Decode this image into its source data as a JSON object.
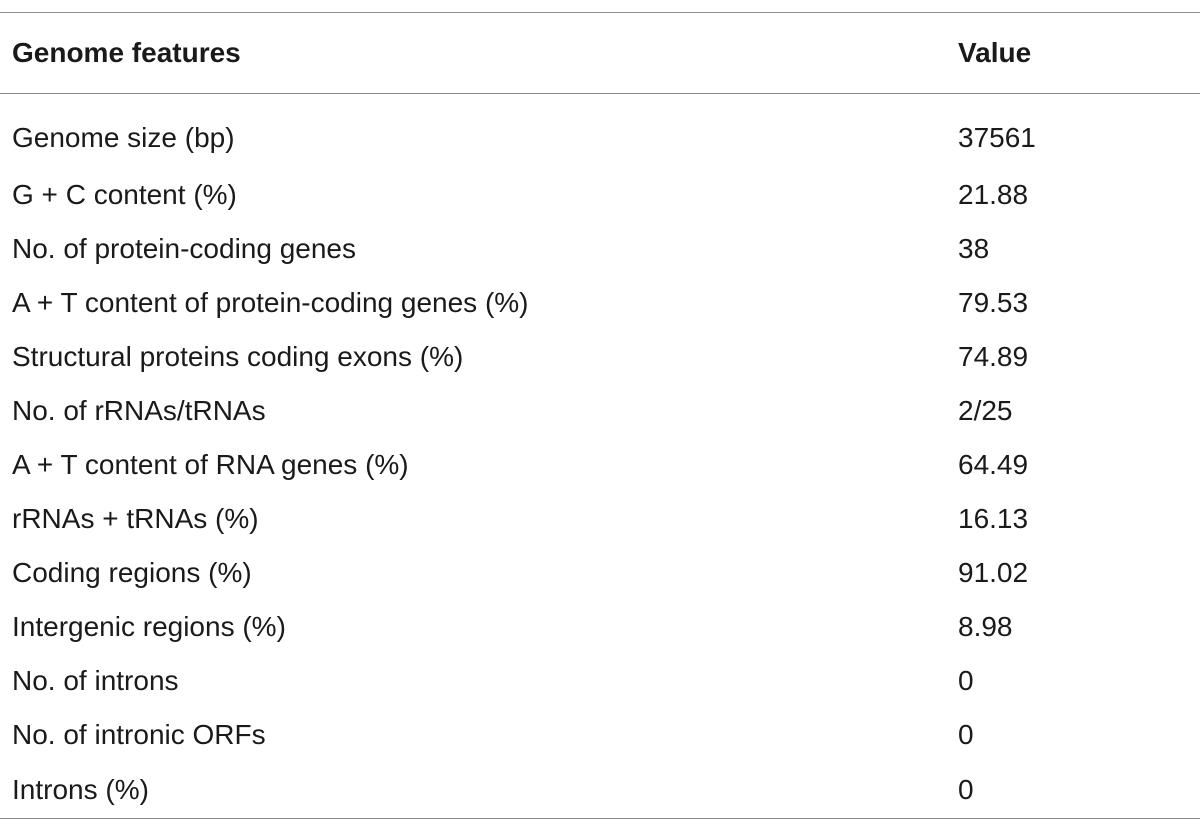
{
  "table": {
    "headers": {
      "feature": "Genome features",
      "value": "Value"
    },
    "rows": [
      {
        "feature": "Genome size (bp)",
        "value": "37561"
      },
      {
        "feature": "G + C content (%)",
        "value": "21.88"
      },
      {
        "feature": "No. of protein-coding genes",
        "value": "38"
      },
      {
        "feature": "A + T content of protein-coding genes (%)",
        "value": "79.53"
      },
      {
        "feature": "Structural proteins coding exons (%)",
        "value": "74.89"
      },
      {
        "feature": "No. of rRNAs/tRNAs",
        "value": "2/25"
      },
      {
        "feature": "A + T content of RNA genes (%)",
        "value": "64.49"
      },
      {
        "feature": "rRNAs + tRNAs (%)",
        "value": "16.13"
      },
      {
        "feature": "Coding regions (%)",
        "value": "91.02"
      },
      {
        "feature": "Intergenic regions (%)",
        "value": "8.98"
      },
      {
        "feature": "No. of introns",
        "value": "0"
      },
      {
        "feature": "No. of intronic ORFs",
        "value": "0"
      },
      {
        "feature": "Introns (%)",
        "value": "0"
      }
    ]
  }
}
